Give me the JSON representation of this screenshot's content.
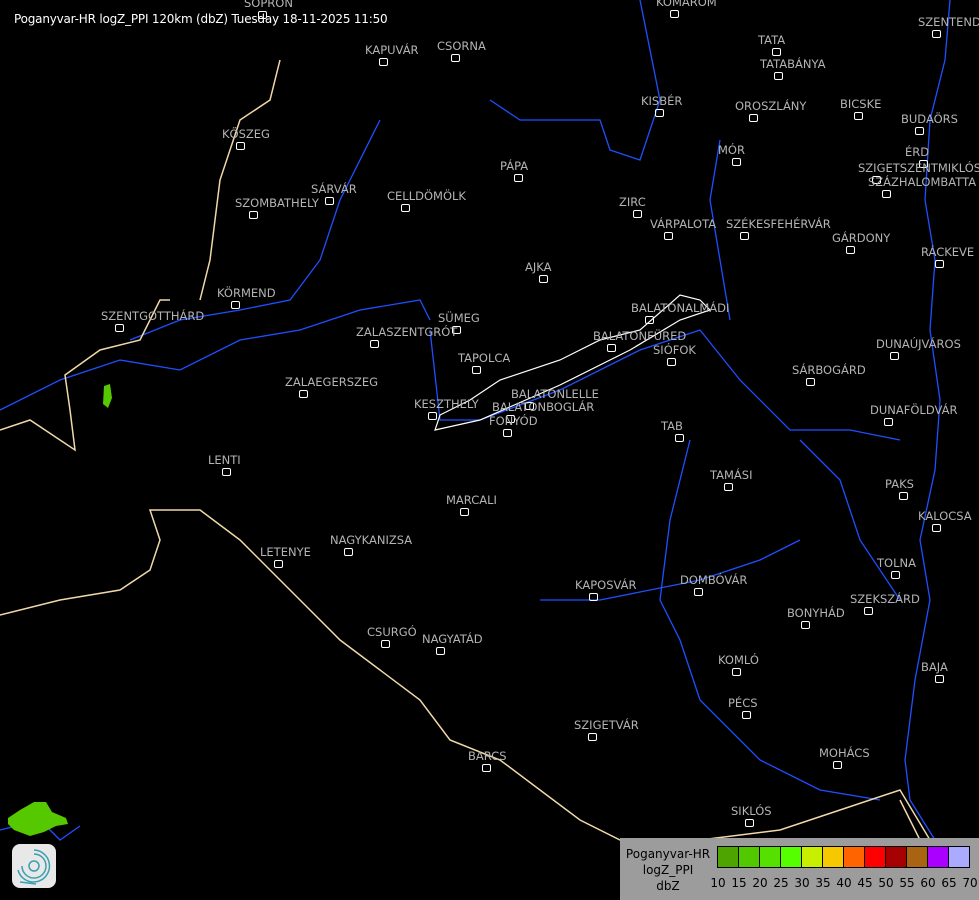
{
  "title": "Poganyvar-HR logZ_PPI 120km (dbZ) Tuesday 18-11-2025 11:50",
  "cities": [
    "SOPRON",
    "KOMÁROM",
    "SZENTENDRE",
    "KAPUVÁR",
    "CSORNA",
    "TATA",
    "TATABÁNYA",
    "KISBÉR",
    "OROSZLÁNY",
    "BICSKE",
    "BUDAÖRS",
    "KŐSZEG",
    "MÓR",
    "ÉRD",
    "PÁPA",
    "SZIGETSZENTMIKLÓS",
    "SZÁZHALOMBATTA",
    "SÁRVÁR",
    "CELLDÖMÖLK",
    "SZOMBATHELY",
    "ZIRC",
    "VÁRPALOTA",
    "SZÉKESFEHÉRVÁR",
    "GÁRDONY",
    "RÁCKEVE",
    "AJKA",
    "KÖRMEND",
    "BALATONALMÁDI",
    "SZENTGOTTHÁRD",
    "SÜMEG",
    "ZALASZENTGRÓT",
    "BALATONFÜRED",
    "DUNAÚJVÁROS",
    "SIÓFOK",
    "TAPOLCA",
    "SÁRBOGÁRD",
    "ZALAEGERSZEG",
    "KESZTHELY",
    "BALATONLELLE",
    "BALATONBOGLÁR",
    "DUNAFÖLDVÁR",
    "FONYÓD",
    "TAB",
    "LENTI",
    "TAMÁSI",
    "PAKS",
    "MARCALI",
    "KALOCSA",
    "NAGYKANIZSA",
    "LETENYE",
    "TOLNA",
    "DOMBÓVÁR",
    "KAPOSVÁR",
    "SZEKSZÁRD",
    "BONYHÁD",
    "CSURGÓ",
    "NAGYATÁD",
    "KOMLÓ",
    "BAJA",
    "PÉCS",
    "SZIGETVÁR",
    "MOHÁCS",
    "BARCS",
    "SIKLÓS"
  ],
  "legend": {
    "line1": "Poganyvar-HR",
    "line2": "logZ_PPI",
    "line3": "dbZ",
    "ticks": [
      "10",
      "15",
      "20",
      "25",
      "30",
      "35",
      "40",
      "45",
      "50",
      "55",
      "60",
      "65",
      "70"
    ],
    "colors": [
      "#4ea400",
      "#52c800",
      "#55e000",
      "#55ff00",
      "#c8ee00",
      "#f5c800",
      "#ff6400",
      "#ff0000",
      "#a60000",
      "#a86410",
      "#aa00ff",
      "#aaaaff"
    ]
  },
  "colors": {
    "river": "#1e50ff",
    "border": "#f0d8a8",
    "lake": "#ffffff",
    "echo": "#55c800"
  },
  "logo": "radar-swirl-logo"
}
